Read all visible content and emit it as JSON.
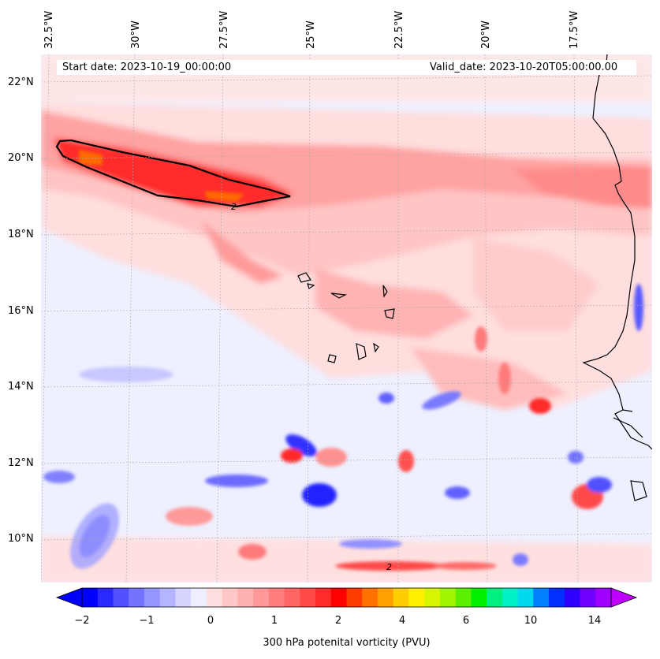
{
  "header": {
    "start_date": "Start date: 2023-10-19_00:00:00",
    "valid_date": "Valid_date: 2023-10-20T05:00:00.00"
  },
  "axes": {
    "lon_labels": [
      "32.5°W",
      "30°W",
      "27.5°W",
      "25°W",
      "22.5°W",
      "20°W",
      "17.5°W"
    ],
    "lat_labels": [
      "22°N",
      "20°N",
      "18°N",
      "16°N",
      "14°N",
      "12°N",
      "10°N"
    ]
  },
  "contour_label": "2",
  "colorbar": {
    "tick_labels": [
      "−2",
      "−1",
      "0",
      "1",
      "2",
      "4",
      "6",
      "10",
      "14"
    ],
    "title": "300 hPa potenital vorticity (PVU)",
    "colors": [
      "#0000ff",
      "#2a2aff",
      "#5050ff",
      "#7373ff",
      "#9595ff",
      "#b5b5ff",
      "#d5d5ff",
      "#eeeeff",
      "#ffe0e0",
      "#ffc8c8",
      "#ffb0b0",
      "#ff9898",
      "#ff7f7f",
      "#ff6565",
      "#ff4848",
      "#ff2a2a",
      "#ff0000",
      "#ff3c00",
      "#ff7200",
      "#ffa000",
      "#ffce00",
      "#fff000",
      "#d8f500",
      "#a0f500",
      "#5cf000",
      "#00f000",
      "#00f080",
      "#00f0c8",
      "#00d8f0",
      "#0080ff",
      "#0030ff",
      "#3000ff",
      "#7000ff",
      "#a000ff"
    ]
  }
}
